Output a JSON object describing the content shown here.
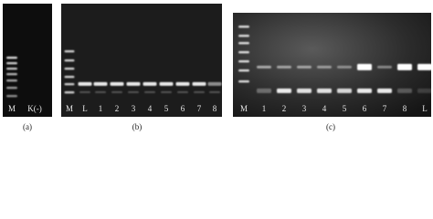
{
  "panels": [
    {
      "caption": "(a)",
      "lanes": [
        "M",
        "K(-)"
      ]
    },
    {
      "caption": "(b)",
      "lanes": [
        "M",
        "L",
        "1",
        "2",
        "3",
        "4",
        "5",
        "6",
        "7",
        "8"
      ]
    },
    {
      "caption": "(c)",
      "lanes": [
        "M",
        "1",
        "2",
        "3",
        "4",
        "5",
        "6",
        "7",
        "8",
        "L"
      ]
    }
  ]
}
